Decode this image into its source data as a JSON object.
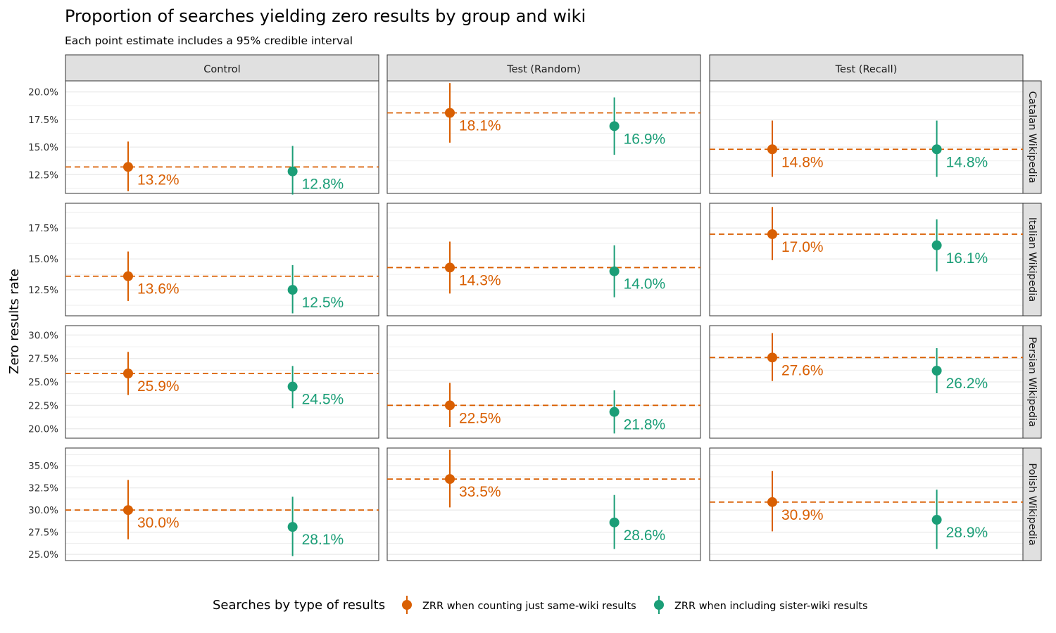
{
  "title": "Proportion of searches yielding zero results by group and wiki",
  "subtitle": "Each point estimate includes a 95% credible interval",
  "chart_data": {
    "type": "scatter",
    "title": "Proportion of searches yielding zero results by group and wiki",
    "subtitle": "Each point estimate includes a 95% credible interval",
    "ylabel": "Zero results rate",
    "xlabel": "",
    "columns": [
      "Control",
      "Test (Random)",
      "Test (Recall)"
    ],
    "rows": [
      "Catalan Wikipedia",
      "Italian Wikipedia",
      "Persian Wikipedia",
      "Polish Wikipedia"
    ],
    "legend_title": "Searches by type of results",
    "legend_position": "bottom",
    "series": [
      {
        "name": "ZRR when counting just same-wiki results",
        "color": "#D95F02"
      },
      {
        "name": "ZRR when including sister-wiki results",
        "color": "#1B9E77"
      }
    ],
    "panels": [
      {
        "ylim": [
          10.8,
          21.0
        ],
        "yticks": [
          12.5,
          15.0,
          17.5,
          20.0
        ],
        "ytick_labels": [
          "12.5%",
          "15.0%",
          "17.5%",
          "20.0%"
        ],
        "cells": [
          [
            {
              "value": 13.2,
              "lo": 11.0,
              "hi": 15.5,
              "label": "13.2%"
            },
            {
              "value": 12.8,
              "lo": 10.7,
              "hi": 15.1,
              "label": "12.8%"
            }
          ],
          [
            {
              "value": 18.1,
              "lo": 15.4,
              "hi": 20.8,
              "label": "18.1%"
            },
            {
              "value": 16.9,
              "lo": 14.3,
              "hi": 19.5,
              "label": "16.9%"
            }
          ],
          [
            {
              "value": 14.8,
              "lo": 12.3,
              "hi": 17.4,
              "label": "14.8%"
            },
            {
              "value": 14.8,
              "lo": 12.3,
              "hi": 17.4,
              "label": "14.8%"
            }
          ]
        ]
      },
      {
        "ylim": [
          10.4,
          19.5
        ],
        "yticks": [
          12.5,
          15.0,
          17.5
        ],
        "ytick_labels": [
          "12.5%",
          "15.0%",
          "17.5%"
        ],
        "cells": [
          [
            {
              "value": 13.6,
              "lo": 11.6,
              "hi": 15.6,
              "label": "13.6%"
            },
            {
              "value": 12.5,
              "lo": 10.6,
              "hi": 14.5,
              "label": "12.5%"
            }
          ],
          [
            {
              "value": 14.3,
              "lo": 12.2,
              "hi": 16.4,
              "label": "14.3%"
            },
            {
              "value": 14.0,
              "lo": 11.9,
              "hi": 16.1,
              "label": "14.0%"
            }
          ],
          [
            {
              "value": 17.0,
              "lo": 14.9,
              "hi": 19.2,
              "label": "17.0%"
            },
            {
              "value": 16.1,
              "lo": 14.0,
              "hi": 18.2,
              "label": "16.1%"
            }
          ]
        ]
      },
      {
        "ylim": [
          19.0,
          31.0
        ],
        "yticks": [
          20.0,
          22.5,
          25.0,
          27.5,
          30.0
        ],
        "ytick_labels": [
          "20.0%",
          "22.5%",
          "25.0%",
          "27.5%",
          "30.0%"
        ],
        "cells": [
          [
            {
              "value": 25.9,
              "lo": 23.6,
              "hi": 28.2,
              "label": "25.9%"
            },
            {
              "value": 24.5,
              "lo": 22.2,
              "hi": 26.7,
              "label": "24.5%"
            }
          ],
          [
            {
              "value": 22.5,
              "lo": 20.2,
              "hi": 24.9,
              "label": "22.5%"
            },
            {
              "value": 21.8,
              "lo": 19.5,
              "hi": 24.1,
              "label": "21.8%"
            }
          ],
          [
            {
              "value": 27.6,
              "lo": 25.1,
              "hi": 30.2,
              "label": "27.6%"
            },
            {
              "value": 26.2,
              "lo": 23.8,
              "hi": 28.6,
              "label": "26.2%"
            }
          ]
        ]
      },
      {
        "ylim": [
          24.3,
          37.0
        ],
        "yticks": [
          25.0,
          27.5,
          30.0,
          32.5,
          35.0
        ],
        "ytick_labels": [
          "25.0%",
          "27.5%",
          "30.0%",
          "32.5%",
          "35.0%"
        ],
        "cells": [
          [
            {
              "value": 30.0,
              "lo": 26.7,
              "hi": 33.4,
              "label": "30.0%"
            },
            {
              "value": 28.1,
              "lo": 24.8,
              "hi": 31.5,
              "label": "28.1%"
            }
          ],
          [
            {
              "value": 33.5,
              "lo": 30.3,
              "hi": 36.8,
              "label": "33.5%"
            },
            {
              "value": 28.6,
              "lo": 25.6,
              "hi": 31.7,
              "label": "28.6%"
            }
          ],
          [
            {
              "value": 30.9,
              "lo": 27.6,
              "hi": 34.4,
              "label": "30.9%"
            },
            {
              "value": 28.9,
              "lo": 25.6,
              "hi": 32.3,
              "label": "28.9%"
            }
          ]
        ]
      }
    ]
  }
}
